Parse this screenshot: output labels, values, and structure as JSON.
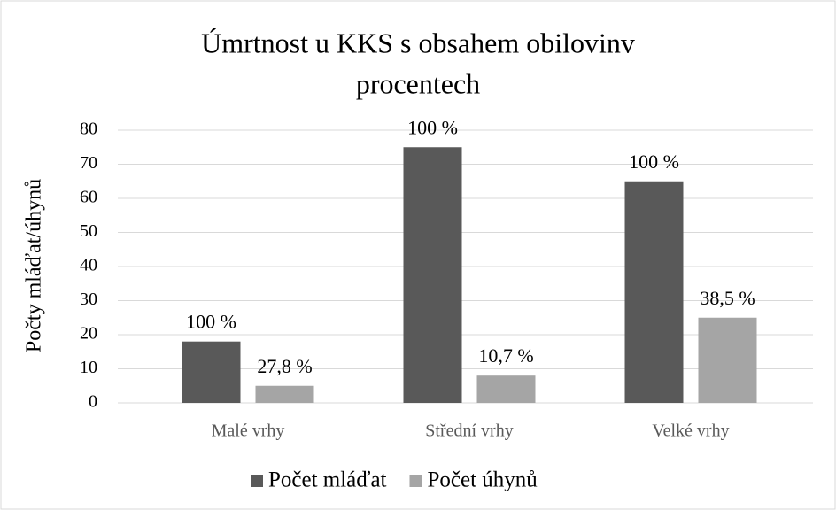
{
  "chart_data": {
    "type": "bar",
    "title": [
      "Úmrtnost u KKS s obsahem obilovinv",
      "procentech"
    ],
    "y_label": "Počty mláďat/úhynů",
    "categories": [
      "Malé vrhy",
      "Střední vrhy",
      "Velké vrhy"
    ],
    "series": [
      {
        "name": "Počet mláďat",
        "color": "#595959",
        "values": [
          18,
          75,
          65
        ],
        "percent_labels": [
          "100 %",
          "100 %",
          "100 %"
        ]
      },
      {
        "name": "Počet úhynů",
        "color": "#a5a5a5",
        "values": [
          5,
          8,
          25
        ],
        "percent_labels": [
          "27,8 %",
          "10,7 %",
          "38,5 %"
        ]
      }
    ],
    "ylim": [
      0,
      80
    ],
    "yticks": [
      0,
      10,
      20,
      30,
      40,
      50,
      60,
      70,
      80
    ],
    "grid": true,
    "legend": "bottom"
  }
}
